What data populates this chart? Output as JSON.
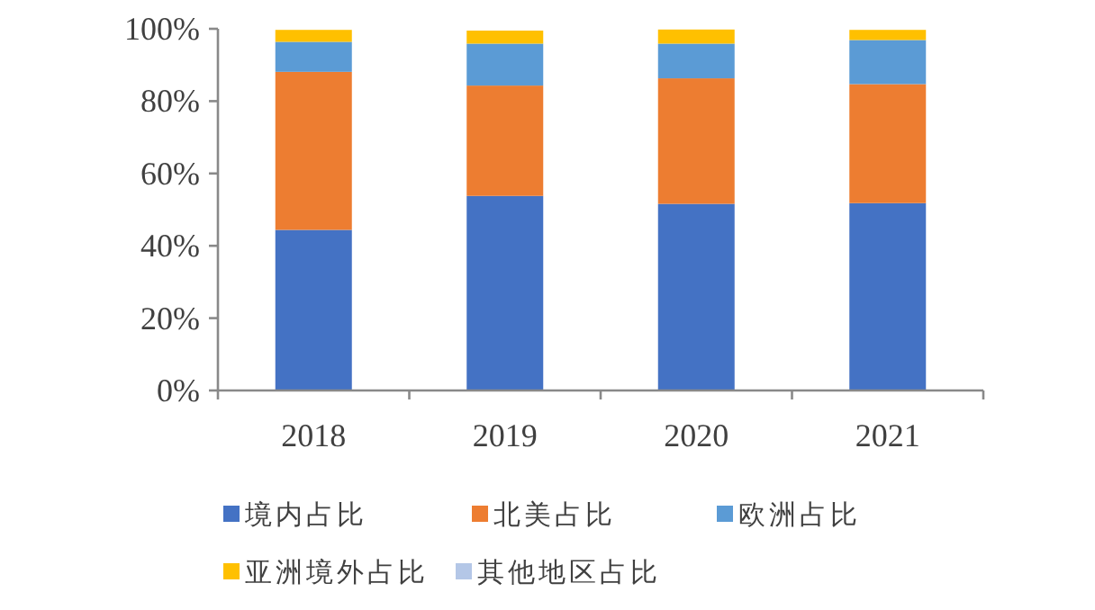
{
  "chart_data": {
    "type": "bar",
    "stacked": true,
    "categories": [
      "2018",
      "2019",
      "2020",
      "2021"
    ],
    "series": [
      {
        "name": "境内占比",
        "color": "#4472c4",
        "values": [
          44.4,
          53.8,
          51.6,
          51.8
        ]
      },
      {
        "name": "北美占比",
        "color": "#ed7d31",
        "values": [
          43.7,
          30.5,
          34.7,
          32.9
        ]
      },
      {
        "name": "欧洲占比",
        "color": "#5b9bd5",
        "values": [
          8.3,
          11.6,
          9.6,
          12.2
        ]
      },
      {
        "name": "亚洲境外占比",
        "color": "#ffc000",
        "values": [
          3.3,
          3.6,
          3.9,
          2.8
        ]
      },
      {
        "name": "其他地区占比",
        "color": "#b4c7e7",
        "values": [
          null,
          null,
          null,
          null
        ]
      }
    ],
    "ylim": [
      0,
      100
    ],
    "yticks": [
      {
        "value": 0,
        "label": "0%"
      },
      {
        "value": 20,
        "label": "20%"
      },
      {
        "value": 40,
        "label": "40%"
      },
      {
        "value": 60,
        "label": "60%"
      },
      {
        "value": 80,
        "label": "80%"
      },
      {
        "value": 100,
        "label": "100%"
      }
    ],
    "grid": false,
    "legend": "bottom"
  }
}
